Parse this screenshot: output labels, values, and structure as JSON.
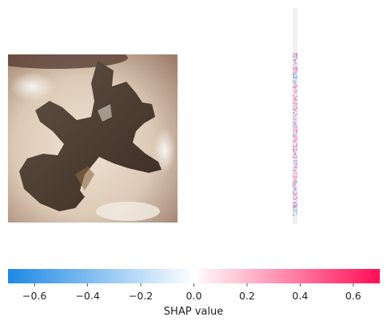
{
  "image_panel": {
    "subject": "close-up photo of a tooth with dark occlusal decay"
  },
  "chart_data": {
    "type": "heatmap",
    "title": "",
    "colorbar": {
      "label": "SHAP value",
      "range": [
        -0.7,
        0.7
      ],
      "ticks": [
        -0.6,
        -0.4,
        -0.2,
        0.0,
        0.2,
        0.4,
        0.6
      ],
      "tick_labels": [
        "−0.6",
        "−0.4",
        "−0.2",
        "0.0",
        "0.2",
        "0.4",
        "0.6"
      ],
      "colormap": {
        "negative": "#1e88e5",
        "zero": "#ffffff",
        "positive": "#ff0d57"
      }
    },
    "explanation_panel": {
      "note": "near-zero SHAP values",
      "value_range_estimate": [
        -0.05,
        0.05
      ]
    }
  }
}
